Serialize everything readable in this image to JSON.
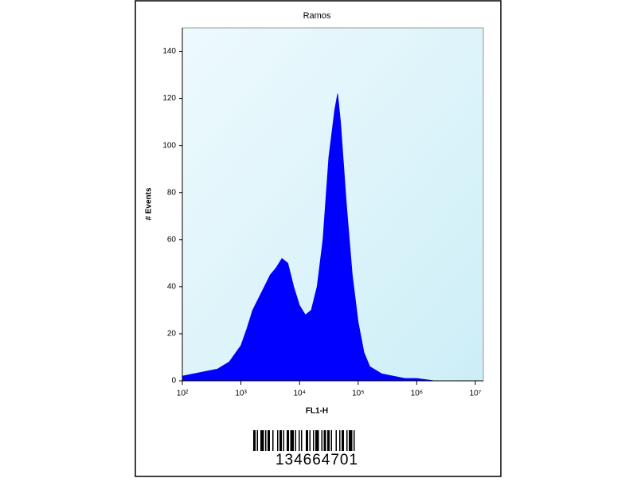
{
  "chart_data": {
    "type": "area",
    "title": "Ramos",
    "x_label": "FL1-H",
    "y_label": "# Events",
    "x": [
      100,
      158,
      251,
      398,
      631,
      1000,
      1259,
      1585,
      1995,
      2512,
      3162,
      3981,
      5012,
      6310,
      7943,
      10000,
      12589,
      15849,
      19953,
      25119,
      31623,
      39811,
      44668,
      50119,
      63096,
      79433,
      100000,
      125893,
      158489,
      251189,
      398107,
      630957,
      1000000,
      1995262,
      10000000,
      13000000
    ],
    "values": [
      2,
      3,
      4,
      5,
      8,
      15,
      22,
      30,
      35,
      40,
      45,
      48,
      52,
      50,
      40,
      32,
      28,
      30,
      40,
      60,
      95,
      115,
      122,
      110,
      75,
      45,
      25,
      12,
      6,
      3,
      2,
      1,
      1,
      0,
      0,
      0
    ],
    "color": "#0000ff",
    "log_x": true,
    "xlim": [
      100,
      13700000
    ],
    "xticks": [
      {
        "value": 100,
        "label": "10²"
      },
      {
        "value": 1000,
        "label": "10³"
      },
      {
        "value": 10000,
        "label": "10⁴"
      },
      {
        "value": 100000,
        "label": "10⁵"
      },
      {
        "value": 1000000,
        "label": "10⁶"
      },
      {
        "value": 10000000,
        "label": "10⁷"
      }
    ],
    "ylim": [
      0,
      150
    ],
    "yticks": [
      0,
      20,
      40,
      60,
      80,
      100,
      120,
      140
    ]
  },
  "barcode": {
    "number": "134664701"
  }
}
